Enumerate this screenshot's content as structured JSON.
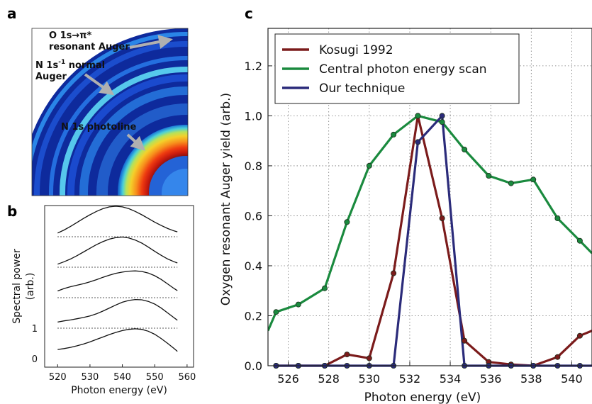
{
  "panel_a": {
    "letter": "a",
    "labels": [
      "O 1s→π*",
      "resonant Auger",
      "N 1s",
      "-1",
      " normal",
      "Auger",
      "N 1s photoline"
    ]
  },
  "panel_b": {
    "letter": "b",
    "y_label": "Spectral power",
    "y_label_2": "(arb.)",
    "x_label": "Photon energy (eV)",
    "y_ticks": [
      "0",
      "1"
    ],
    "x_ticks": [
      "520",
      "530",
      "540",
      "550",
      "560"
    ]
  },
  "panel_c": {
    "letter": "c"
  },
  "colors": {
    "kosugi": "#7b1b1b",
    "central": "#1a8a3e",
    "ours": "#2b2b7a",
    "grid": "#777777"
  },
  "chart_data": [
    {
      "type": "line",
      "panel": "b",
      "xlabel": "Photon energy (eV)",
      "ylabel": "Spectral power (arb.)",
      "xlim": [
        516,
        562
      ],
      "ylim": [
        0,
        5
      ],
      "x": [
        520,
        522,
        524,
        526,
        528,
        530,
        532,
        534,
        536,
        538,
        540,
        542,
        544,
        546,
        548,
        550,
        552,
        554,
        556,
        557
      ],
      "series": [
        {
          "offset": 4,
          "values": [
            0.12,
            0.22,
            0.34,
            0.47,
            0.6,
            0.72,
            0.83,
            0.92,
            0.98,
            1.0,
            0.98,
            0.92,
            0.83,
            0.72,
            0.6,
            0.48,
            0.37,
            0.27,
            0.19,
            0.16
          ]
        },
        {
          "offset": 3,
          "values": [
            0.1,
            0.18,
            0.27,
            0.38,
            0.5,
            0.62,
            0.74,
            0.84,
            0.92,
            0.97,
            0.99,
            0.96,
            0.89,
            0.79,
            0.66,
            0.52,
            0.39,
            0.27,
            0.18,
            0.14
          ]
        },
        {
          "offset": 2,
          "values": [
            0.22,
            0.3,
            0.36,
            0.41,
            0.46,
            0.52,
            0.59,
            0.67,
            0.74,
            0.8,
            0.84,
            0.87,
            0.88,
            0.86,
            0.81,
            0.72,
            0.6,
            0.45,
            0.3,
            0.23
          ]
        },
        {
          "offset": 1,
          "values": [
            0.2,
            0.24,
            0.27,
            0.31,
            0.35,
            0.4,
            0.47,
            0.56,
            0.66,
            0.76,
            0.85,
            0.91,
            0.94,
            0.93,
            0.88,
            0.79,
            0.66,
            0.5,
            0.34,
            0.26
          ]
        },
        {
          "offset": 0,
          "values": [
            0.3,
            0.33,
            0.37,
            0.42,
            0.48,
            0.55,
            0.63,
            0.71,
            0.79,
            0.86,
            0.92,
            0.96,
            0.98,
            0.96,
            0.9,
            0.8,
            0.66,
            0.5,
            0.33,
            0.24
          ]
        }
      ]
    },
    {
      "type": "line",
      "panel": "c",
      "xlabel": "Photon energy (eV)",
      "ylabel": "Oxygen resonant Auger yield (arb.)",
      "xlim": [
        525,
        541
      ],
      "ylim": [
        0,
        1.35
      ],
      "x_ticks": [
        526,
        528,
        530,
        532,
        534,
        536,
        538,
        540
      ],
      "y_ticks": [
        0.0,
        0.2,
        0.4,
        0.6,
        0.8,
        1.0,
        1.2
      ],
      "grid": true,
      "legend": "top-left",
      "series": [
        {
          "name": "Kosugi 1992",
          "color": "#7b1b1b",
          "x": [
            525.4,
            526.5,
            527.8,
            528.9,
            530.0,
            531.2,
            532.4,
            533.6,
            534.7,
            535.9,
            537.0,
            538.1,
            539.3,
            540.4,
            541.0
          ],
          "y": [
            0.0,
            0.0,
            0.0,
            0.045,
            0.03,
            0.37,
            1.0,
            0.59,
            0.1,
            0.015,
            0.005,
            0.0,
            0.035,
            0.12,
            0.14
          ]
        },
        {
          "name": "Central photon energy scan",
          "color": "#1a8a3e",
          "x": [
            525.0,
            525.4,
            526.5,
            527.8,
            528.9,
            530.0,
            531.2,
            532.4,
            533.6,
            534.7,
            535.9,
            537.0,
            538.1,
            539.3,
            540.4,
            541.0
          ],
          "y": [
            0.14,
            0.215,
            0.245,
            0.31,
            0.575,
            0.8,
            0.925,
            1.0,
            0.975,
            0.865,
            0.76,
            0.73,
            0.745,
            0.59,
            0.5,
            0.45
          ]
        },
        {
          "name": "Our technique",
          "color": "#2b2b7a",
          "x": [
            525.4,
            526.5,
            527.8,
            528.9,
            530.0,
            531.2,
            532.4,
            533.6,
            534.7,
            535.9,
            537.0,
            538.1,
            539.3,
            540.4,
            541.0
          ],
          "y": [
            0.0,
            0.0,
            0.0,
            0.0,
            0.0,
            0.0,
            0.895,
            1.0,
            0.0,
            0.0,
            0.0,
            0.0,
            0.0,
            0.0,
            0.0
          ]
        }
      ]
    }
  ]
}
